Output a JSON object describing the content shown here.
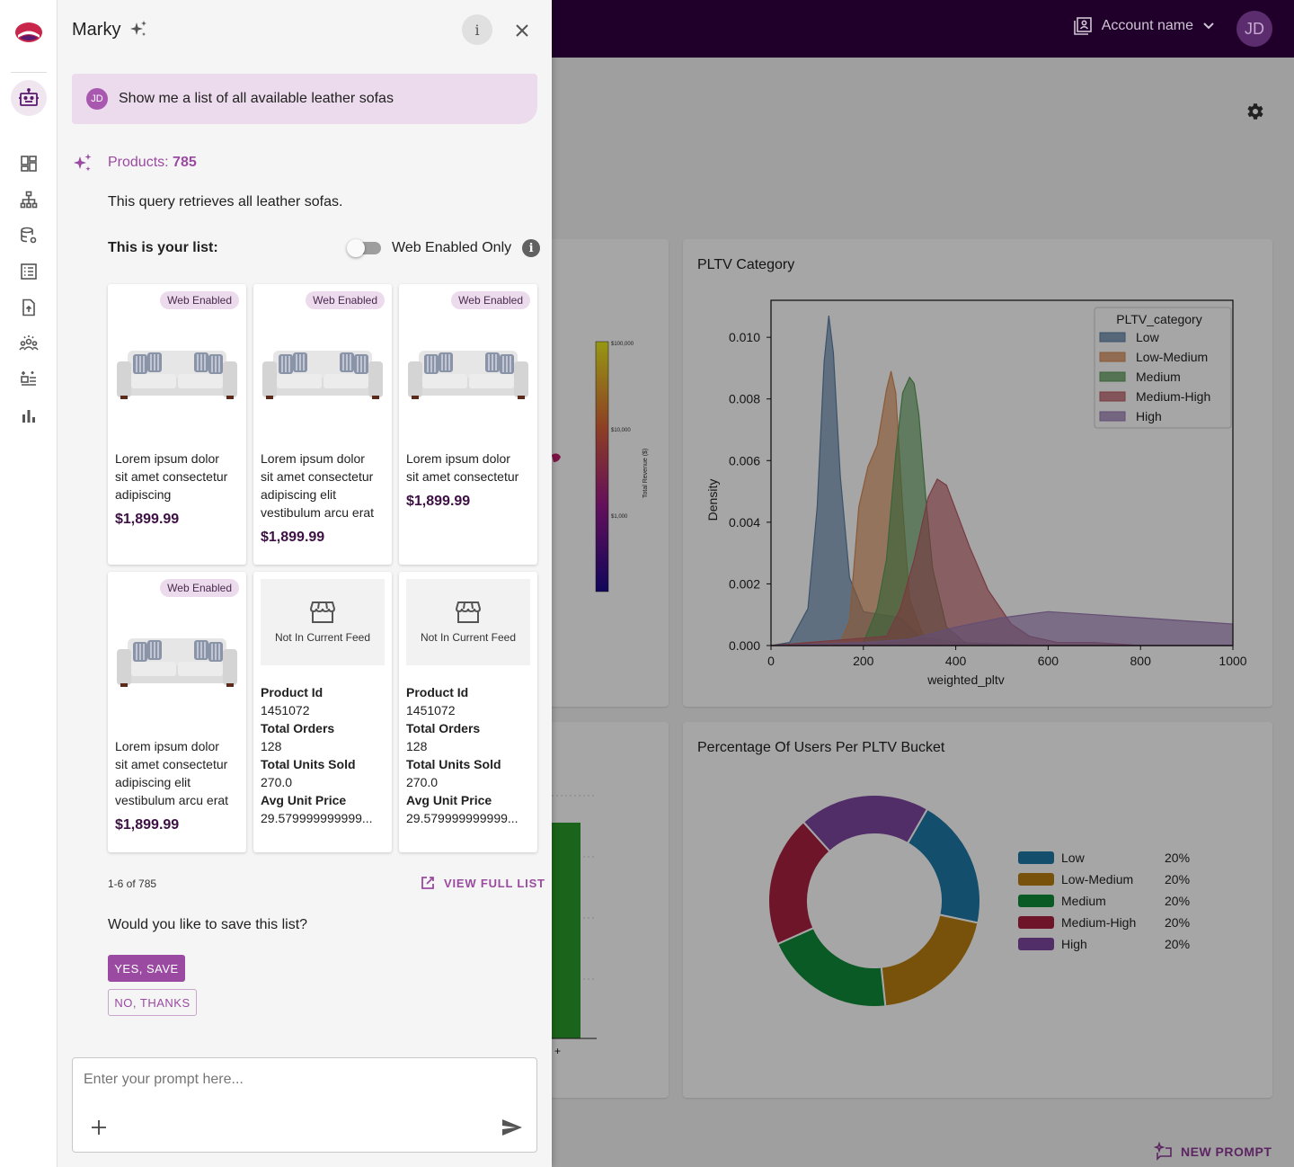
{
  "topbar": {
    "account_label": "Account name",
    "avatar_initials": "JD"
  },
  "panel": {
    "title": "Marky",
    "user_initials": "JD",
    "user_message": "Show me a list of all available leather sofas",
    "products_label": "Products:",
    "products_count": "785",
    "query_description": "This query retrieves all leather sofas.",
    "list_label": "This is your list:",
    "web_toggle_label": "Web Enabled Only",
    "web_toggle_on": false,
    "pagination": "1-6 of 785",
    "view_full_list": "VIEW FULL LIST",
    "save_question": "Would you like to save this list?",
    "yes_save": "YES, SAVE",
    "no_thanks": "NO, THANKS",
    "prompt_placeholder": "Enter your prompt here..."
  },
  "products": [
    {
      "badge": "Web Enabled",
      "lines": [
        "Lorem ipsum dolor",
        "sit amet consectetur",
        "adipiscing"
      ],
      "price": "$1,899.99"
    },
    {
      "badge": "Web Enabled",
      "lines": [
        "Lorem ipsum dolor",
        "sit amet consectetur",
        "adipiscing elit",
        "vestibulum arcu erat"
      ],
      "price": "$1,899.99"
    },
    {
      "badge": "Web Enabled",
      "lines": [
        "Lorem ipsum dolor",
        "sit amet consectetur"
      ],
      "price": "$1,899.99"
    },
    {
      "badge": "Web Enabled",
      "lines": [
        "Lorem ipsum dolor",
        "sit amet consectetur",
        "adipiscing elit",
        "vestibulum arcu erat"
      ],
      "price": "$1,899.99"
    },
    {
      "not_in_feed": "Not In Current Feed",
      "product_id_label": "Product Id",
      "product_id": "1451072",
      "total_orders_label": "Total Orders",
      "total_orders": "128",
      "units_label": "Total Units Sold",
      "units": "270.0",
      "avg_price_label": "Avg Unit Price",
      "avg_price": "29.579999999999..."
    },
    {
      "not_in_feed": "Not In Current Feed",
      "product_id_label": "Product Id",
      "product_id": "1451072",
      "total_orders_label": "Total Orders",
      "total_orders": "128",
      "units_label": "Total Units Sold",
      "units": "270.0",
      "avg_price_label": "Avg Unit Price",
      "avg_price": "29.579999999999..."
    }
  ],
  "dashboard": {
    "new_prompt": "NEW PROMPT",
    "pltv_card_title": "PLTV Category",
    "bucket_card_title": "Percentage Of Users Per PLTV Bucket",
    "colorbar": {
      "label": "Total Revenue ($)",
      "ticks": [
        "$100,000",
        "$10,000",
        "$1,000"
      ]
    },
    "bar_tick": "+"
  },
  "chart_data": [
    {
      "type": "area",
      "title": "PLTV Category",
      "xlabel": "weighted_pltv",
      "ylabel": "Density",
      "xlim": [
        0,
        1000
      ],
      "ylim": [
        0,
        0.0112
      ],
      "x_ticks": [
        "0",
        "200",
        "400",
        "600",
        "800",
        "1000"
      ],
      "y_ticks": [
        "0.000",
        "0.002",
        "0.004",
        "0.006",
        "0.008",
        "0.010"
      ],
      "y_tick_values": [
        0,
        0.002,
        0.004,
        0.006,
        0.008,
        0.01
      ],
      "x_tick_values": [
        0,
        200,
        400,
        600,
        800,
        1000
      ],
      "legend_title": "PLTV_category",
      "legend_position": "top-right",
      "series": [
        {
          "name": "Low",
          "color": "#5b7ea3",
          "x": [
            0,
            40,
            80,
            100,
            115,
            125,
            135,
            150,
            170,
            200,
            240,
            280,
            320,
            400,
            600,
            1000
          ],
          "y": [
            0,
            0.0001,
            0.0012,
            0.0045,
            0.0092,
            0.0107,
            0.0095,
            0.0055,
            0.0022,
            0.0011,
            0.001,
            0.0009,
            0.0003,
            0.0001,
            0,
            0
          ]
        },
        {
          "name": "Low-Medium",
          "color": "#d58a54",
          "x": [
            0,
            150,
            170,
            190,
            210,
            230,
            250,
            260,
            270,
            285,
            300,
            330,
            360,
            400,
            600,
            1000
          ],
          "y": [
            0,
            0.0001,
            0.0008,
            0.0045,
            0.0058,
            0.0065,
            0.0083,
            0.0089,
            0.0082,
            0.0045,
            0.0015,
            0.0003,
            0.0001,
            0,
            0,
            0
          ]
        },
        {
          "name": "Medium",
          "color": "#5a9a58",
          "x": [
            0,
            200,
            230,
            250,
            270,
            285,
            300,
            310,
            320,
            335,
            350,
            380,
            420,
            480,
            600,
            1000
          ],
          "y": [
            0,
            0.0001,
            0.0012,
            0.0028,
            0.0062,
            0.0082,
            0.0087,
            0.0085,
            0.0075,
            0.0048,
            0.0025,
            0.0006,
            0.0001,
            0,
            0,
            0
          ]
        },
        {
          "name": "Medium-High",
          "color": "#b85a63",
          "x": [
            0,
            250,
            280,
            310,
            340,
            360,
            380,
            400,
            430,
            470,
            520,
            560,
            620,
            700,
            800,
            1000
          ],
          "y": [
            0,
            0.0003,
            0.0012,
            0.0028,
            0.0048,
            0.0054,
            0.0052,
            0.0044,
            0.0032,
            0.0018,
            0.0007,
            0.0003,
            0.0001,
            0.0001,
            0,
            0
          ]
        },
        {
          "name": "High",
          "color": "#9a79b3",
          "x": [
            0,
            200,
            300,
            400,
            500,
            600,
            700,
            800,
            900,
            1000
          ],
          "y": [
            0,
            0.0001,
            0.0002,
            0.0006,
            0.0009,
            0.0011,
            0.001,
            0.0009,
            0.0008,
            0.0007
          ]
        }
      ]
    },
    {
      "type": "pie",
      "title": "Percentage Of Users Per PLTV Bucket",
      "legend_position": "right",
      "categories": [
        "Low",
        "Low-Medium",
        "Medium",
        "Medium-High",
        "High"
      ],
      "values": [
        20,
        20,
        20,
        20,
        20
      ],
      "labels": [
        "20%",
        "20%",
        "20%",
        "20%",
        "20%"
      ],
      "colors": [
        "#1e78a8",
        "#b87d10",
        "#0e8a3a",
        "#a9213f",
        "#7f47a0"
      ],
      "start_angle": -60
    }
  ]
}
